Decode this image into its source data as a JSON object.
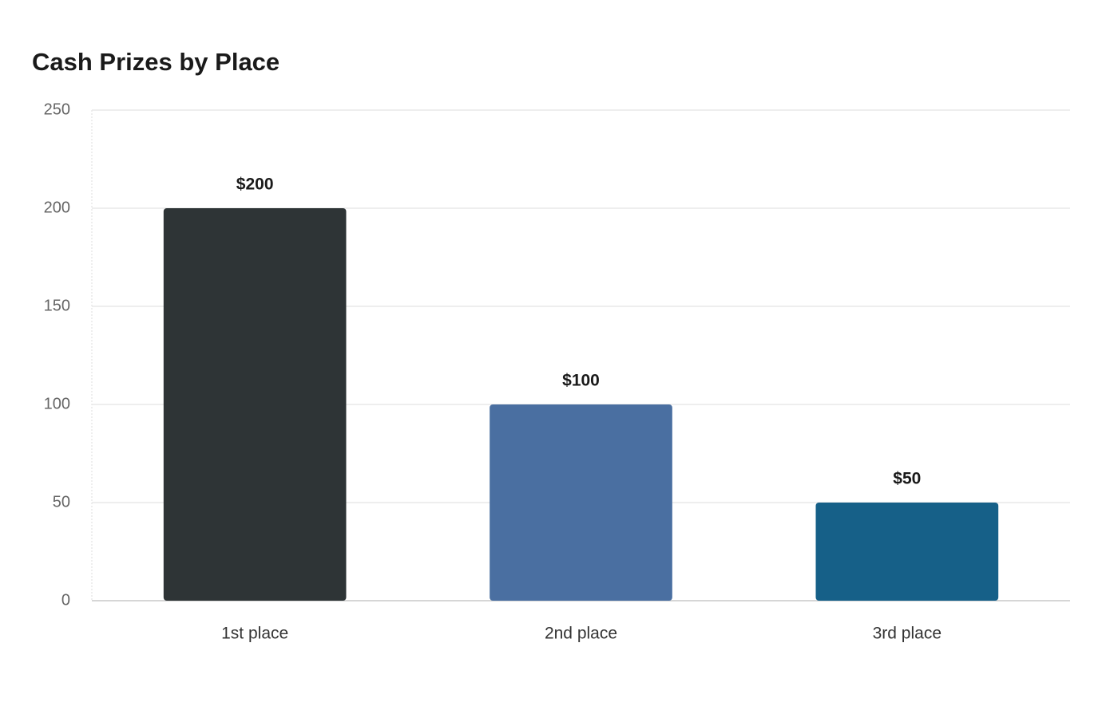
{
  "chart_data": {
    "type": "bar",
    "title": "Cash Prizes by Place",
    "categories": [
      "1st place",
      "2nd place",
      "3rd place"
    ],
    "values": [
      200,
      100,
      50
    ],
    "value_labels": [
      "$200",
      "$100",
      "$50"
    ],
    "colors": [
      "#2e3436",
      "#4a6fa1",
      "#166088"
    ],
    "ylim": [
      0,
      250
    ],
    "yticks": [
      0,
      50,
      100,
      150,
      200,
      250
    ],
    "grid": true
  }
}
